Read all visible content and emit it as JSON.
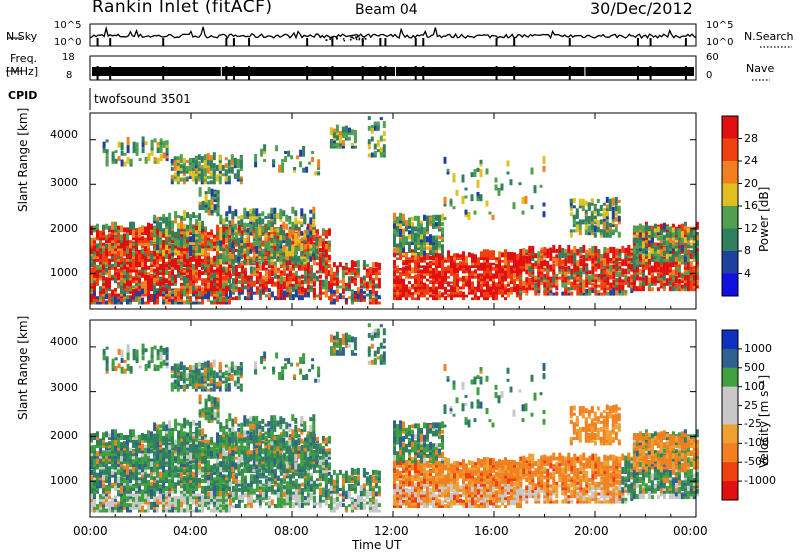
{
  "header": {
    "station": "Rankin Inlet (fitACF)",
    "beam": "Beam 04",
    "date": "30/Dec/2012"
  },
  "strips": {
    "nsky_label": "N.Sky",
    "nsky_ticks": [
      "10^5",
      "10^0"
    ],
    "nsearch_label": "N.Search",
    "nsearch_ticks": [
      "10^5",
      "10^0"
    ],
    "freq_label_1": "Freq.",
    "freq_label_2": "[MHz]",
    "freq_ticks": [
      "18",
      "8"
    ],
    "nave_label": "Nave",
    "nave_ticks": [
      "60",
      "0"
    ],
    "cpid_label": "CPID",
    "cpid_value": "twofsound 3501"
  },
  "chart_data": [
    {
      "type": "heatmap",
      "name": "power-panel",
      "ylabel": "Slant Range [km]",
      "yticks": [
        1000,
        2000,
        3000,
        4000
      ],
      "ylim": [
        200,
        4600
      ],
      "xlim_hours": [
        0,
        24
      ],
      "colorbar": {
        "label": "Power [dB]",
        "ticks": [
          "4",
          "8",
          "12",
          "16",
          "20",
          "24",
          "28"
        ],
        "colors": [
          "#1010e0",
          "#2040a0",
          "#308060",
          "#50a050",
          "#e0c020",
          "#f08020",
          "#f04010",
          "#e01010"
        ]
      }
    },
    {
      "type": "heatmap",
      "name": "velocity-panel",
      "ylabel": "Slant Range [km]",
      "yticks": [
        1000,
        2000,
        3000,
        4000
      ],
      "ylim": [
        200,
        4600
      ],
      "xlim_hours": [
        0,
        24
      ],
      "colorbar": {
        "label": "Velocity [m s⁻¹]",
        "ticks": [
          "1000",
          "500",
          "100",
          "25",
          "-25",
          "-100",
          "-500",
          "-1000"
        ],
        "colors": [
          "#1030c0",
          "#306090",
          "#40a040",
          "#c8c8c8",
          "#c8c8c8",
          "#f0a030",
          "#f08020",
          "#f04010",
          "#e01010"
        ]
      }
    }
  ],
  "xaxis": {
    "ticks": [
      "00:00",
      "04:00",
      "08:00",
      "12:00",
      "16:00",
      "20:00",
      "00:00"
    ],
    "label": "Time UT"
  }
}
